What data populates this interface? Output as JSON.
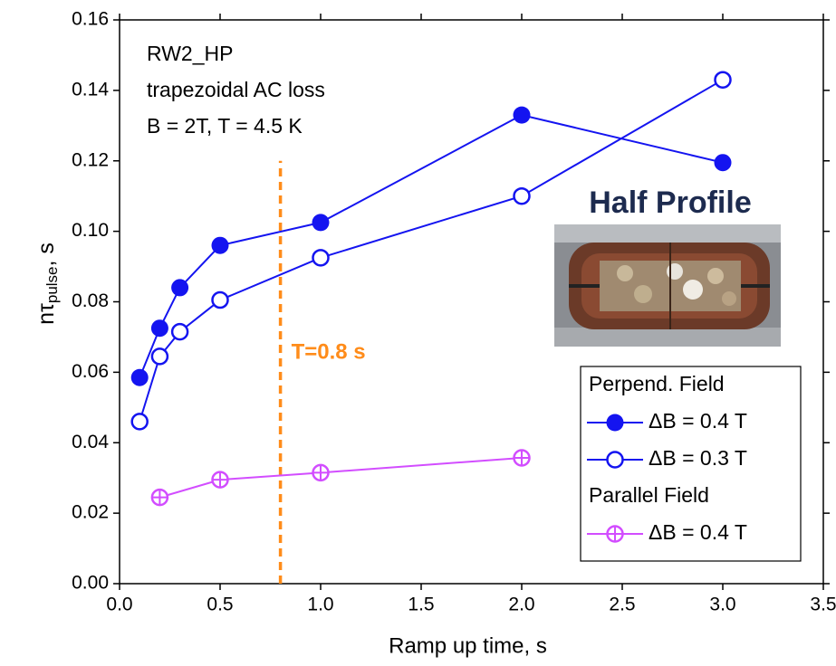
{
  "chart_data": {
    "type": "line",
    "x_label": "Ramp up time,  s",
    "y_label": "nτ",
    "y_label_sub": "pulse",
    "y_label_suffix": ",  s",
    "annotations": [
      "RW2_HP",
      "trapezoidal AC loss",
      "B = 2T, T = 4.5 K"
    ],
    "inset_title": "Half Profile",
    "legend_groups": [
      "Perpend. Field",
      "Parallel Field"
    ],
    "xlim": [
      0,
      3.5
    ],
    "ylim": [
      0,
      0.16
    ],
    "xticks": [
      {
        "value": 0,
        "label": "0.0"
      },
      0.5,
      {
        "value": 1,
        "label": "1.0"
      },
      1.5,
      {
        "value": 2,
        "label": "2.0"
      },
      2.5,
      {
        "value": 3,
        "label": "3.0"
      },
      3.5
    ],
    "yticks": [
      {
        "value": 0,
        "label": "0.00"
      },
      {
        "value": 0.02,
        "label": "0.02"
      },
      {
        "value": 0.04,
        "label": "0.04"
      },
      {
        "value": 0.06,
        "label": "0.06"
      },
      {
        "value": 0.08,
        "label": "0.08"
      },
      {
        "value": 0.1,
        "label": "0.10"
      },
      {
        "value": 0.12,
        "label": "0.12"
      },
      {
        "value": 0.14,
        "label": "0.14"
      },
      {
        "value": 0.16,
        "label": "0.16"
      }
    ],
    "vline": {
      "x": 0.8,
      "ymax": 0.12,
      "color": "#ff8c1a",
      "label": "T=0.8 s"
    },
    "series": [
      {
        "name": "ΔB = 0.4 T",
        "color": "#1414f0",
        "marker": "filled",
        "x": [
          0.1,
          0.2,
          0.3,
          0.5,
          1.0,
          2.0,
          3.0
        ],
        "values": [
          0.0585,
          0.0725,
          0.084,
          0.096,
          0.1025,
          0.133,
          0.1195
        ]
      },
      {
        "name": "ΔB = 0.3 T",
        "color": "#1414f0",
        "marker": "open",
        "x": [
          0.1,
          0.2,
          0.3,
          0.5,
          1.0,
          2.0,
          3.0
        ],
        "values": [
          0.046,
          0.0645,
          0.0715,
          0.0805,
          0.0925,
          0.11,
          0.143
        ]
      },
      {
        "name": "ΔB = 0.4 T",
        "color": "#d24dff",
        "marker": "crossed",
        "x": [
          0.2,
          0.5,
          1.0,
          2.0
        ],
        "values": [
          0.0245,
          0.0295,
          0.0315,
          0.0357
        ]
      }
    ]
  }
}
